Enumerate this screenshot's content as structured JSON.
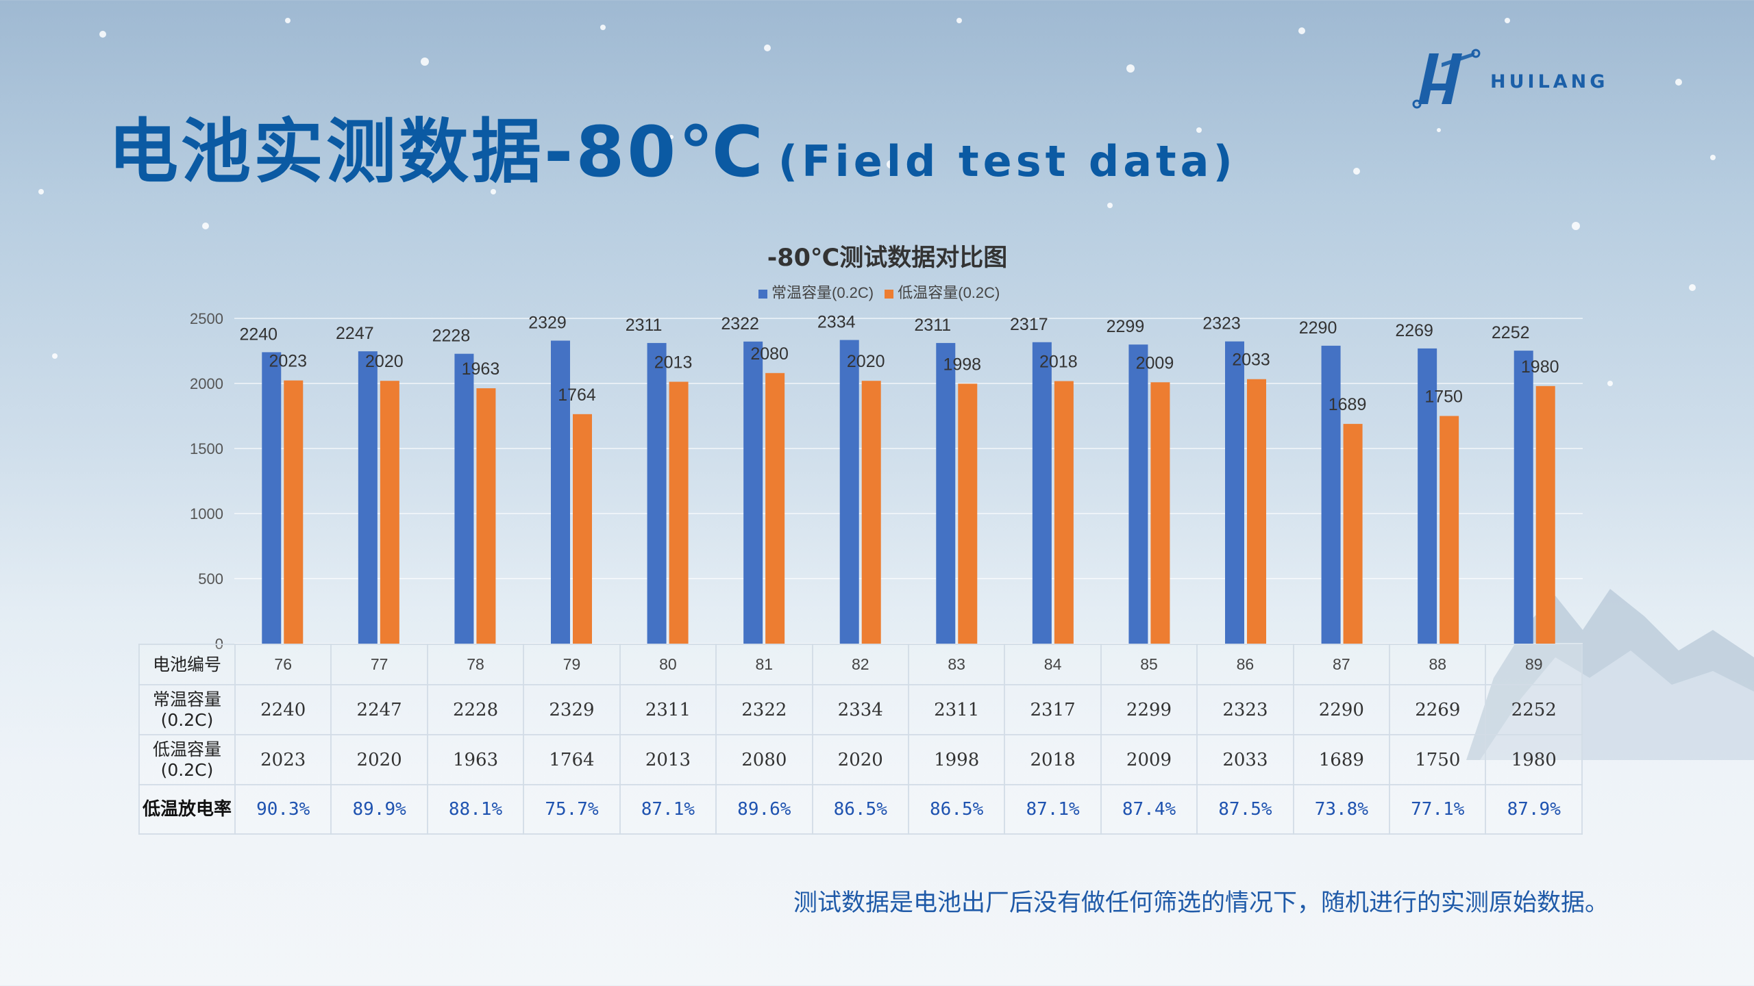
{
  "header": {
    "title_main": "电池实测数据-80℃",
    "title_sub": "(Field test data)",
    "logo_text": "HUILANG"
  },
  "colors": {
    "series_normal": "#4472c4",
    "series_low": "#ed7d31",
    "title": "#0b5aa3"
  },
  "chart_data": {
    "type": "bar",
    "title": "-80℃测试数据对比图",
    "categories": [
      "76",
      "77",
      "78",
      "79",
      "80",
      "81",
      "82",
      "83",
      "84",
      "85",
      "86",
      "87",
      "88",
      "89"
    ],
    "series": [
      {
        "name": "常温容量(0.2C)",
        "values": [
          2240,
          2247,
          2228,
          2329,
          2311,
          2322,
          2334,
          2311,
          2317,
          2299,
          2323,
          2290,
          2269,
          2252
        ]
      },
      {
        "name": "低温容量(0.2C)",
        "values": [
          2023,
          2020,
          1963,
          1764,
          2013,
          2080,
          2020,
          1998,
          2018,
          2009,
          2033,
          1689,
          1750,
          1980
        ]
      }
    ],
    "y_ticks": [
      "0",
      "500",
      "1000",
      "1500",
      "2000",
      "2500"
    ],
    "ylim": [
      0,
      2500
    ],
    "legend_position": "top-center",
    "grid": true
  },
  "table": {
    "row_headers": [
      [
        "电池编号"
      ],
      [
        "常温容量",
        "(0.2C)"
      ],
      [
        "低温容量",
        "(0.2C)"
      ],
      [
        "低温放电率"
      ]
    ],
    "ids": [
      "76",
      "77",
      "78",
      "79",
      "80",
      "81",
      "82",
      "83",
      "84",
      "85",
      "86",
      "87",
      "88",
      "89"
    ],
    "normal": [
      "2240",
      "2247",
      "2228",
      "2329",
      "2311",
      "2322",
      "2334",
      "2311",
      "2317",
      "2299",
      "2323",
      "2290",
      "2269",
      "2252"
    ],
    "low": [
      "2023",
      "2020",
      "1963",
      "1764",
      "2013",
      "2080",
      "2020",
      "1998",
      "2018",
      "2009",
      "2033",
      "1689",
      "1750",
      "1980"
    ],
    "rate": [
      "90.3%",
      "89.9%",
      "88.1%",
      "75.7%",
      "87.1%",
      "89.6%",
      "86.5%",
      "86.5%",
      "87.1%",
      "87.4%",
      "87.5%",
      "73.8%",
      "77.1%",
      "87.9%"
    ]
  },
  "footnote": "测试数据是电池出厂后没有做任何筛选的情况下，随机进行的实测原始数据。"
}
